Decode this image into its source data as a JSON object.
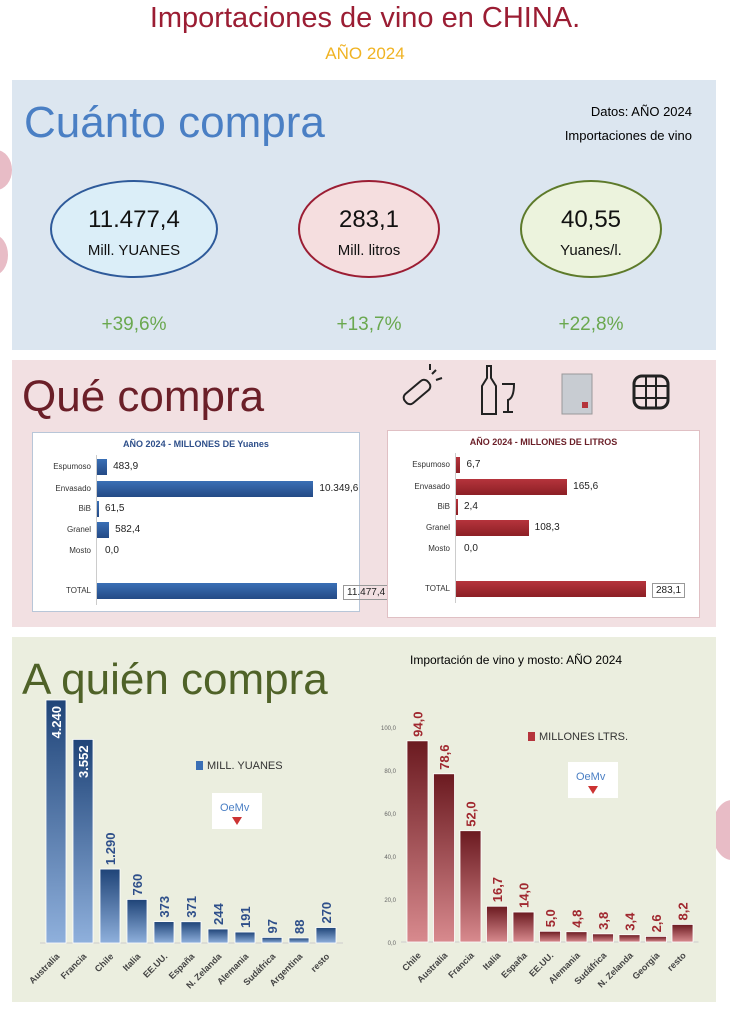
{
  "header": {
    "title": "Importaciones de vino en CHINA.",
    "year": "AÑO 2024"
  },
  "cuanto": {
    "heading": "Cuánto compra",
    "source": "Datos: AÑO 2024",
    "subtitle": "Importaciones de vino",
    "kpis": [
      {
        "value": "11.477,4",
        "unit": "Mill. YUANES",
        "change": "+39,6%",
        "color": "#2e5a9a",
        "fill": "#dbeef8"
      },
      {
        "value": "283,1",
        "unit": "Mill. litros",
        "change": "+13,7%",
        "color": "#9b1d33",
        "fill": "#f5dedf"
      },
      {
        "value": "40,55",
        "unit": "Yuanes/l.",
        "change": "+22,8%",
        "color": "#5d7a2a",
        "fill": "#ecf3dd"
      }
    ]
  },
  "que": {
    "heading": "Qué compra",
    "icons": [
      "champagne-icon",
      "bottle-glass-icon",
      "bag-in-box-icon",
      "barrel-icon"
    ]
  },
  "chart_data": [
    {
      "type": "bar",
      "orientation": "horizontal",
      "title": "AÑO 2024 - MILLONES DE Yuanes",
      "categories": [
        "Espumoso",
        "Envasado",
        "BiB",
        "Granel",
        "Mosto",
        "TOTAL"
      ],
      "values": [
        483.9,
        10349.6,
        61.5,
        582.4,
        0.0,
        11477.4
      ],
      "labels": [
        "483,9",
        "10.349,6",
        "61,5",
        "582,4",
        "0,0",
        "11.477,4"
      ],
      "color": "#3a6fb5"
    },
    {
      "type": "bar",
      "orientation": "horizontal",
      "title": "AÑO 2024 - MILLONES DE LITROS",
      "categories": [
        "Espumoso",
        "Envasado",
        "BiB",
        "Granel",
        "Mosto",
        "TOTAL"
      ],
      "values": [
        6.7,
        165.6,
        2.4,
        108.3,
        0.0,
        283.1
      ],
      "labels": [
        "6,7",
        "165,6",
        "2,4",
        "108,3",
        "0,0",
        "283,1"
      ],
      "color": "#b5343c"
    },
    {
      "type": "bar",
      "title": "",
      "legend": "MILL. YUANES",
      "categories": [
        "Australia",
        "Francia",
        "Chile",
        "Italia",
        "EE.UU.",
        "España",
        "N. Zelanda",
        "Alemania",
        "Sudáfrica",
        "Argentina",
        "resto"
      ],
      "values": [
        4240,
        3552,
        1290,
        760,
        373,
        371,
        244,
        191,
        97,
        88,
        270
      ],
      "labels": [
        "4.240",
        "3.552",
        "1.290",
        "760",
        "373",
        "371",
        "244",
        "191",
        "97",
        "88",
        "270"
      ],
      "color": "#3a6fb5"
    },
    {
      "type": "bar",
      "title": "",
      "legend": "MILLONES LTRS.",
      "categories": [
        "Chile",
        "Australia",
        "Francia",
        "Italia",
        "España",
        "EE.UU.",
        "Alemania",
        "Sudáfrica",
        "N. Zelanda",
        "Georgia",
        "resto"
      ],
      "values": [
        94.0,
        78.6,
        52.0,
        16.7,
        14.0,
        5.0,
        4.8,
        3.8,
        3.4,
        2.6,
        8.2
      ],
      "labels": [
        "94,0",
        "78,6",
        "52,0",
        "16,7",
        "14,0",
        "5,0",
        "4,8",
        "3,8",
        "3,4",
        "2,6",
        "8,2"
      ],
      "ylim": [
        0,
        100
      ],
      "yticks": [
        "0,0",
        "20,0",
        "40,0",
        "60,0",
        "80,0",
        "100,0"
      ],
      "color": "#b5343c"
    }
  ],
  "quien": {
    "heading": "A quién compra",
    "subtitle": "Importación de vino y mosto: AÑO 2024",
    "logo_text": "OeMv"
  }
}
